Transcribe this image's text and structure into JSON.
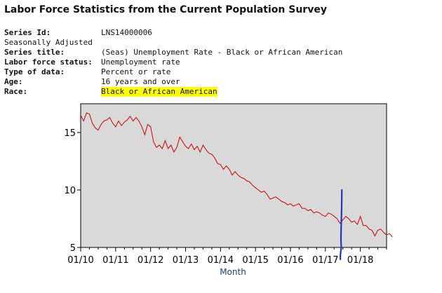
{
  "page": {
    "title": "Labor Force Statistics from the Current Population Survey"
  },
  "meta": {
    "series_id_label": "Series Id:",
    "series_id": "LNS14000006",
    "seasonal": "Seasonally Adjusted",
    "series_title_label": "Series title:",
    "series_title": "(Seas) Unemployment Rate - Black or African American",
    "lf_status_label": "Labor force status:",
    "lf_status": "Unemployment rate",
    "data_type_label": "Type of data:",
    "data_type": "Percent or rate",
    "age_label": "Age:",
    "age": "16 years and over",
    "race_label": "Race:",
    "race": "Black or African American",
    "highlight_color": "#ffff00"
  },
  "chart_data": {
    "type": "line",
    "title": "",
    "xlabel": "Month",
    "ylabel": "",
    "ylim": [
      5,
      17.5
    ],
    "yticks": [
      5,
      10,
      15
    ],
    "ytick_labels": [
      "5",
      "10",
      "15"
    ],
    "xlim": [
      2010.0,
      2018.75
    ],
    "xticks": [
      2010,
      2011,
      2012,
      2013,
      2014,
      2015,
      2016,
      2017,
      2018
    ],
    "xtick_labels": [
      "01/10",
      "01/11",
      "01/12",
      "01/13",
      "01/14",
      "01/15",
      "01/16",
      "01/17",
      "01/18"
    ],
    "grid": false,
    "background": "#d9d9d9",
    "series": [
      {
        "name": "Unemployment Rate - Black or African American",
        "color": "#cc0000",
        "start": "2010-01",
        "values": [
          16.5,
          16.0,
          16.7,
          16.6,
          15.8,
          15.4,
          15.2,
          15.7,
          16.0,
          16.1,
          16.3,
          15.8,
          15.5,
          16.0,
          15.6,
          15.9,
          16.1,
          16.4,
          16.0,
          16.3,
          16.0,
          15.5,
          14.8,
          15.7,
          15.5,
          14.2,
          13.7,
          13.9,
          13.6,
          14.3,
          13.6,
          13.9,
          13.3,
          13.7,
          14.6,
          14.2,
          13.8,
          13.6,
          14.0,
          13.5,
          13.8,
          13.3,
          13.9,
          13.5,
          13.2,
          13.1,
          12.8,
          12.3,
          12.2,
          11.8,
          12.1,
          11.8,
          11.3,
          11.6,
          11.3,
          11.1,
          11.0,
          10.8,
          10.7,
          10.4,
          10.2,
          10.0,
          9.8,
          9.9,
          9.6,
          9.2,
          9.3,
          9.4,
          9.2,
          9.0,
          8.9,
          8.7,
          8.8,
          8.6,
          8.7,
          8.8,
          8.4,
          8.4,
          8.2,
          8.3,
          8.0,
          8.1,
          8.0,
          7.8,
          7.7,
          8.0,
          7.9,
          7.7,
          7.5,
          7.1,
          7.4,
          7.7,
          7.5,
          7.2,
          7.3,
          7.0,
          7.7,
          6.9,
          6.9,
          6.6,
          6.5,
          6.0,
          6.5,
          6.6,
          6.3,
          6.1,
          6.2,
          5.9
        ]
      }
    ],
    "marker_line": {
      "description": "hand-drawn vertical marker",
      "x": 2017.45,
      "ytop": 10.0,
      "color": "#2233cc"
    }
  }
}
